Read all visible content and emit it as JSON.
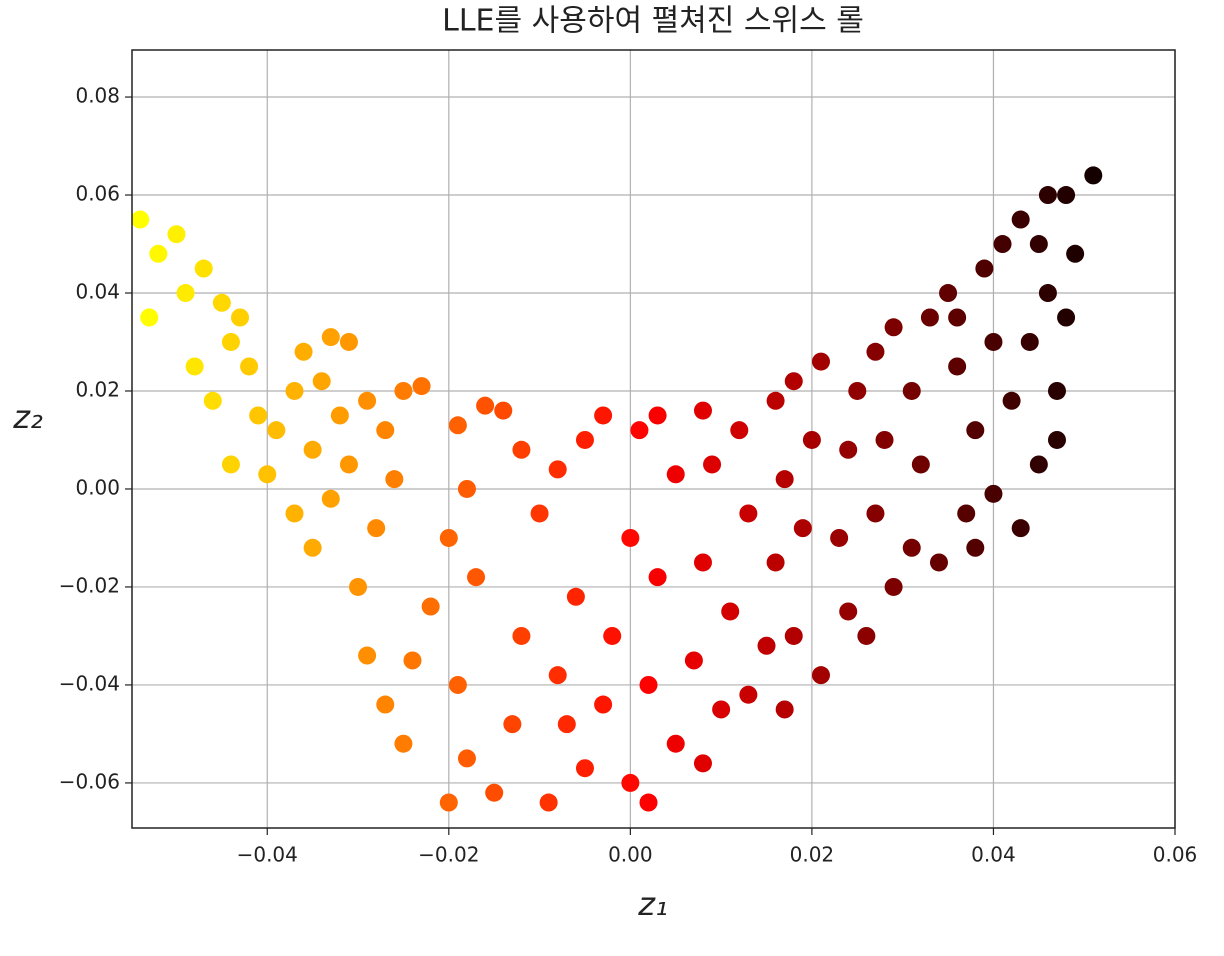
{
  "chart_data": {
    "type": "scatter",
    "title": "LLE를 사용하여 펼쳐진 스위스 롤",
    "xlabel": "z₁",
    "ylabel": "z₂",
    "colormap": "hot",
    "grid": true,
    "xlim": [
      -0.0549,
      0.06
    ],
    "ylim": [
      -0.0692,
      0.0896
    ],
    "xticks": [
      {
        "value": -0.04,
        "label": "−0.04"
      },
      {
        "value": -0.02,
        "label": "−0.02"
      },
      {
        "value": 0,
        "label": "0.00"
      },
      0.02,
      0.04,
      0.06
    ],
    "yticks": [
      {
        "value": -0.06,
        "label": "−0.06"
      },
      {
        "value": -0.04,
        "label": "−0.04"
      },
      {
        "value": -0.02,
        "label": "−0.02"
      },
      {
        "value": 0,
        "label": "0.00"
      },
      0.02,
      0.04,
      0.06,
      0.08
    ],
    "x": [
      -0.054,
      -0.052,
      -0.05,
      -0.053,
      -0.049,
      -0.047,
      -0.045,
      -0.044,
      -0.048,
      -0.046,
      -0.043,
      -0.042,
      -0.041,
      -0.044,
      -0.04,
      -0.039,
      -0.037,
      -0.036,
      -0.034,
      -0.033,
      -0.031,
      -0.032,
      -0.035,
      -0.037,
      -0.035,
      -0.033,
      -0.031,
      -0.029,
      -0.027,
      -0.025,
      -0.023,
      -0.026,
      -0.028,
      -0.03,
      -0.029,
      -0.027,
      -0.025,
      -0.024,
      -0.022,
      -0.02,
      -0.018,
      -0.019,
      -0.016,
      -0.014,
      -0.017,
      -0.019,
      -0.018,
      -0.02,
      -0.015,
      -0.013,
      -0.012,
      -0.01,
      -0.012,
      -0.008,
      -0.005,
      -0.003,
      -0.006,
      -0.008,
      -0.007,
      -0.009,
      -0.005,
      -0.003,
      -0.002,
      0,
      0.001,
      0.003,
      0.005,
      0.003,
      0.002,
      0,
      0.002,
      0.005,
      0.007,
      0.008,
      0.009,
      0.008,
      0.012,
      0.013,
      0.011,
      0.01,
      0.008,
      0.013,
      0.015,
      0.016,
      0.017,
      0.016,
      0.018,
      0.021,
      0.02,
      0.019,
      0.018,
      0.017,
      0.021,
      0.024,
      0.023,
      0.024,
      0.025,
      0.027,
      0.029,
      0.028,
      0.027,
      0.026,
      0.029,
      0.031,
      0.032,
      0.031,
      0.033,
      0.035,
      0.036,
      0.034,
      0.037,
      0.038,
      0.04,
      0.039,
      0.041,
      0.043,
      0.045,
      0.046,
      0.044,
      0.042,
      0.04,
      0.043,
      0.045,
      0.047,
      0.048,
      0.048,
      0.051,
      0.049,
      0.046,
      0.036,
      0.038,
      0.047
    ],
    "values": [
      0.055,
      0.048,
      0.052,
      0.035,
      0.04,
      0.045,
      0.038,
      0.03,
      0.025,
      0.018,
      0.035,
      0.025,
      0.015,
      0.005,
      0.003,
      0.012,
      0.02,
      0.028,
      0.022,
      0.031,
      0.03,
      0.015,
      0.008,
      -0.005,
      -0.012,
      -0.002,
      0.005,
      0.018,
      0.012,
      0.02,
      0.021,
      0.002,
      -0.008,
      -0.02,
      -0.034,
      -0.044,
      -0.052,
      -0.035,
      -0.024,
      -0.01,
      0,
      0.013,
      0.017,
      0.016,
      -0.018,
      -0.04,
      -0.055,
      -0.064,
      -0.062,
      -0.048,
      -0.03,
      -0.005,
      0.008,
      0.004,
      0.01,
      0.015,
      -0.022,
      -0.038,
      -0.048,
      -0.064,
      -0.057,
      -0.044,
      -0.03,
      -0.01,
      0.012,
      0.015,
      0.003,
      -0.018,
      -0.04,
      -0.06,
      -0.064,
      -0.052,
      -0.035,
      -0.015,
      0.005,
      0.016,
      0.012,
      -0.005,
      -0.025,
      -0.045,
      -0.056,
      -0.042,
      -0.032,
      -0.015,
      0.002,
      0.018,
      0.022,
      0.026,
      0.01,
      -0.008,
      -0.03,
      -0.045,
      -0.038,
      -0.025,
      -0.01,
      0.008,
      0.02,
      0.028,
      0.033,
      0.01,
      -0.005,
      -0.03,
      -0.02,
      -0.012,
      0.005,
      0.02,
      0.035,
      0.04,
      0.025,
      -0.015,
      -0.005,
      0.012,
      0.03,
      0.045,
      0.05,
      0.055,
      0.05,
      0.04,
      0.03,
      0.018,
      -0.001,
      -0.008,
      0.005,
      0.02,
      0.035,
      0.06,
      0.064,
      0.048,
      0.06,
      0.035,
      -0.012,
      0.01
    ]
  }
}
